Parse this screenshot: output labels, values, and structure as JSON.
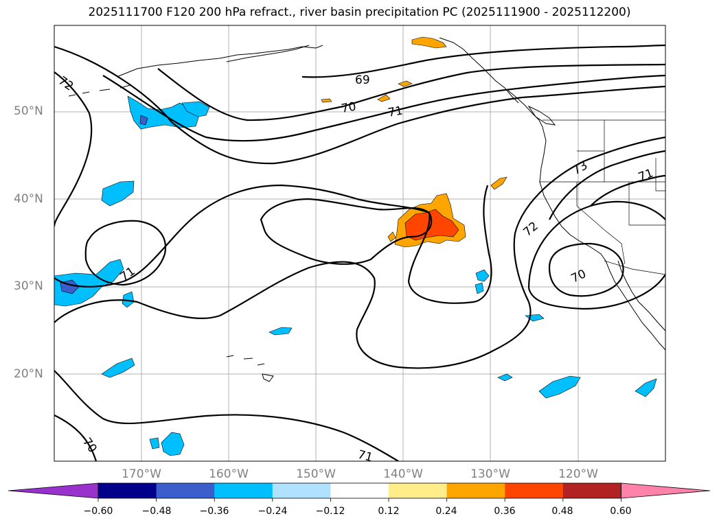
{
  "title": "2025111700 F120 200 hPa refract., river basin precipitation PC (2025111900 - 2025112200)",
  "latitude_labels": [
    "50°N",
    "40°N",
    "30°N",
    "20°N"
  ],
  "longitude_labels": [
    "170°W",
    "160°W",
    "150°W",
    "140°W",
    "130°W",
    "120°W"
  ],
  "contour_labels": [
    "69",
    "70",
    "71",
    "72",
    "73",
    "71",
    "72",
    "70",
    "71",
    "70",
    "71"
  ],
  "colorbar": {
    "ticks": [
      "−0.60",
      "−0.48",
      "−0.36",
      "−0.24",
      "−0.12",
      "0.12",
      "0.24",
      "0.36",
      "0.48",
      "0.60"
    ],
    "colors": [
      "#9932cc",
      "#00008b",
      "#3a5fcd",
      "#00bfff",
      "#b0e2ff",
      "#ffffff",
      "#ffec8b",
      "#ffa500",
      "#ff4500",
      "#b22222",
      "#ff82ab"
    ],
    "extend": "both"
  },
  "colors": {
    "contour_line": "#000000",
    "grid": "#b0b0b0",
    "coastline": "#000000",
    "axis_label": "#808080"
  }
}
